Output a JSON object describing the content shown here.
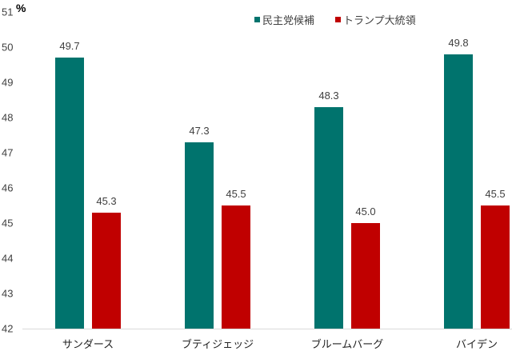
{
  "chart_data": {
    "type": "bar",
    "title": "",
    "xlabel": "",
    "ylabel": "%",
    "ylim": [
      42,
      51
    ],
    "yticks": [
      42,
      43,
      44,
      45,
      46,
      47,
      48,
      49,
      50,
      51
    ],
    "grid": false,
    "legend_position": "top-right",
    "categories": [
      "サンダース",
      "ブティジェッジ",
      "ブルームバーグ",
      "バイデン"
    ],
    "series": [
      {
        "name": "民主党候補",
        "color": "#00736d",
        "values": [
          49.7,
          47.3,
          48.3,
          49.8
        ],
        "labels": [
          "49.7",
          "47.3",
          "48.3",
          "49.8"
        ]
      },
      {
        "name": "トランプ大統領",
        "color": "#c00000",
        "values": [
          45.3,
          45.5,
          45.0,
          45.5
        ],
        "labels": [
          "45.3",
          "45.5",
          "45.0",
          "45.5"
        ]
      }
    ]
  }
}
